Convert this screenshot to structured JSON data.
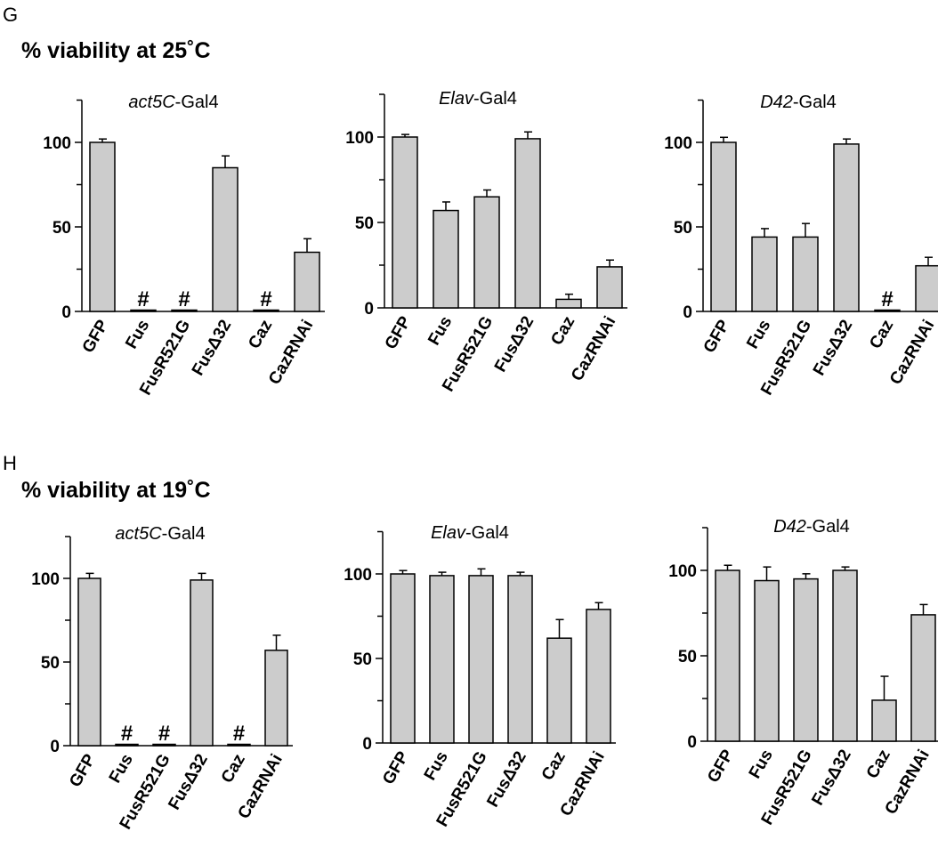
{
  "panels": [
    {
      "letter": "G",
      "title": "% viability at 25˚C"
    },
    {
      "letter": "H",
      "title": "% viability at 19˚C"
    }
  ],
  "colors": {
    "bar_fill": "#cccccc",
    "stroke": "#000000"
  },
  "chart_data": [
    {
      "type": "bar",
      "title_italic": "act5C",
      "title_rest": "-Gal4",
      "categories": [
        "GFP",
        "Fus",
        "FusR521G",
        "FusΔ32",
        "Caz",
        "CazRNAi"
      ],
      "values": [
        100,
        0,
        0,
        85,
        0,
        35
      ],
      "errors": [
        2,
        0,
        0,
        7,
        0,
        8
      ],
      "markers": [
        "",
        "#",
        "#",
        "",
        "#",
        ""
      ],
      "yticks": [
        "0",
        "50",
        "100"
      ],
      "ylim": [
        0,
        125
      ]
    },
    {
      "type": "bar",
      "title_italic": "Elav",
      "title_rest": "-Gal4",
      "categories": [
        "GFP",
        "Fus",
        "FusR521G",
        "FusΔ32",
        "Caz",
        "CazRNAi"
      ],
      "values": [
        100,
        57,
        65,
        99,
        5,
        24
      ],
      "errors": [
        1.5,
        5,
        4,
        4,
        3,
        4
      ],
      "markers": [
        "",
        "",
        "",
        "",
        "",
        ""
      ],
      "yticks": [
        "0",
        "50",
        "100"
      ],
      "ylim": [
        0,
        125
      ]
    },
    {
      "type": "bar",
      "title_italic": "D42",
      "title_rest": "-Gal4",
      "categories": [
        "GFP",
        "Fus",
        "FusR521G",
        "FusΔ32",
        "Caz",
        "CazRNAi"
      ],
      "values": [
        100,
        44,
        44,
        99,
        0,
        27
      ],
      "errors": [
        3,
        5,
        8,
        3,
        0,
        5
      ],
      "markers": [
        "",
        "",
        "",
        "",
        "#",
        ""
      ],
      "yticks": [
        "0",
        "50",
        "100"
      ],
      "ylim": [
        0,
        125
      ]
    },
    {
      "type": "bar",
      "title_italic": "act5C",
      "title_rest": "-Gal4",
      "categories": [
        "GFP",
        "Fus",
        "FusR521G",
        "FusΔ32",
        "Caz",
        "CazRNAi"
      ],
      "values": [
        100,
        0,
        0,
        99,
        0,
        57
      ],
      "errors": [
        3,
        0,
        0,
        4,
        0,
        9
      ],
      "markers": [
        "",
        "#",
        "#",
        "",
        "#",
        ""
      ],
      "yticks": [
        "0",
        "50",
        "100"
      ],
      "ylim": [
        0,
        125
      ]
    },
    {
      "type": "bar",
      "title_italic": "Elav",
      "title_rest": "-Gal4",
      "categories": [
        "GFP",
        "Fus",
        "FusR521G",
        "FusΔ32",
        "Caz",
        "CazRNAi"
      ],
      "values": [
        100,
        99,
        99,
        99,
        62,
        79
      ],
      "errors": [
        2,
        2,
        4,
        2,
        11,
        4
      ],
      "markers": [
        "",
        "",
        "",
        "",
        "",
        ""
      ],
      "yticks": [
        "0",
        "50",
        "100"
      ],
      "ylim": [
        0,
        125
      ]
    },
    {
      "type": "bar",
      "title_italic": "D42",
      "title_rest": "-Gal4",
      "categories": [
        "GFP",
        "Fus",
        "FusR521G",
        "FusΔ32",
        "Caz",
        "CazRNAi"
      ],
      "values": [
        100,
        94,
        95,
        100,
        24,
        74
      ],
      "errors": [
        3,
        8,
        3,
        2,
        14,
        6
      ],
      "markers": [
        "",
        "",
        "",
        "",
        "",
        ""
      ],
      "yticks": [
        "0",
        "50",
        "100"
      ],
      "ylim": [
        0,
        125
      ]
    }
  ]
}
